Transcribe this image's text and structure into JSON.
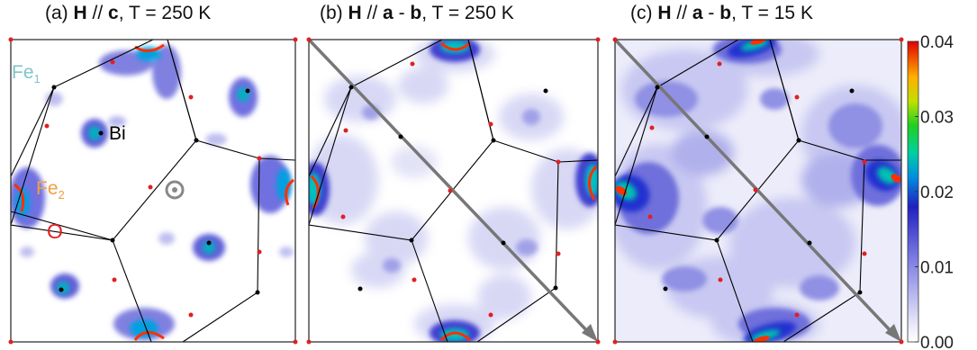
{
  "figure": {
    "panels": [
      {
        "id": "a",
        "label": "(a)",
        "field": "H",
        "sep": "//",
        "dir_parts": [
          "c"
        ],
        "dir_ops": [],
        "temp": "T = 250 K"
      },
      {
        "id": "b",
        "label": "(b)",
        "field": "H",
        "sep": "//",
        "dir_parts": [
          "a",
          "b"
        ],
        "dir_ops": [
          "-"
        ],
        "temp": "T = 250 K"
      },
      {
        "id": "c",
        "label": "(c)",
        "field": "H",
        "sep": "//",
        "dir_parts": [
          "a",
          "b"
        ],
        "dir_ops": [
          "-"
        ],
        "temp": "T = 15 K"
      }
    ],
    "atom_labels": {
      "fe1": "Fe",
      "fe1_sub": "1",
      "bi": "Bi",
      "fe2": "Fe",
      "fe2_sub": "2",
      "o": "O"
    },
    "colorbar": {
      "ticks": [
        "0.00",
        "0.01",
        "0.02",
        "0.03",
        "0.04"
      ],
      "min": 0.0,
      "max": 0.04
    },
    "colors": {
      "fe1_label": "#7fc4c9",
      "fe2_label": "#f0a040",
      "o_label": "#e02020",
      "atom_red": "#e02020",
      "atom_black": "#000000",
      "arrow": "#777777"
    }
  }
}
